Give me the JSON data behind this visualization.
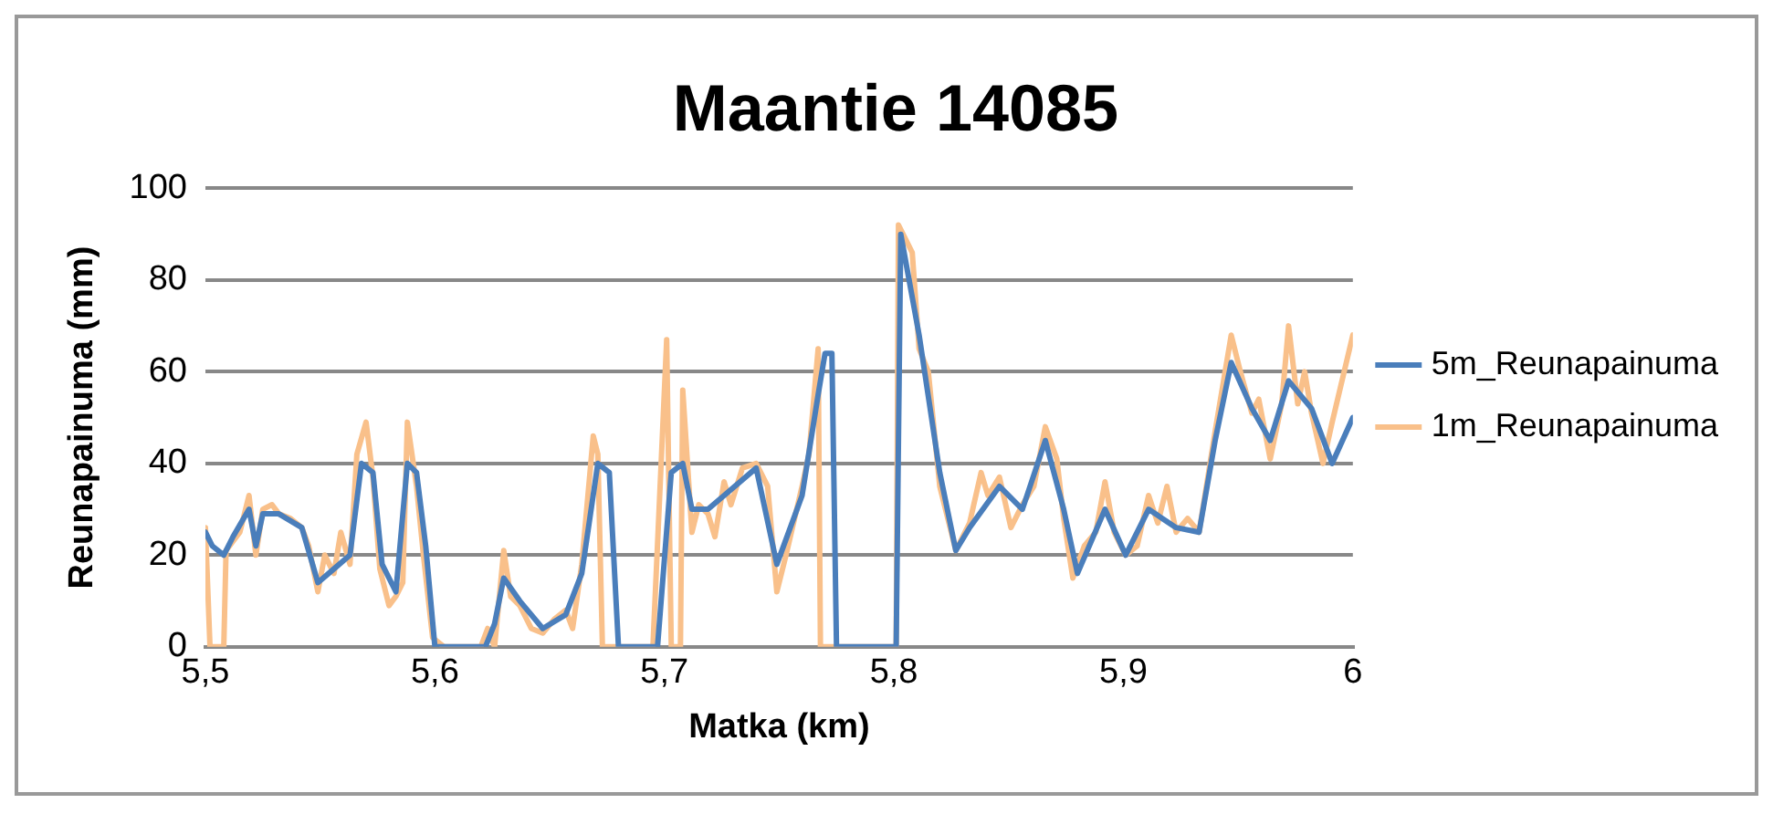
{
  "chart_data": {
    "type": "line",
    "title": "Maantie 14085",
    "xlabel": "Matka (km)",
    "ylabel": "Reunapainuma (mm)",
    "xlim": [
      5.5,
      6
    ],
    "xticks": [
      {
        "value": 5.5,
        "label": "5,5"
      },
      {
        "value": 5.6,
        "label": "5,6"
      },
      {
        "value": 5.7,
        "label": "5,7"
      },
      {
        "value": 5.8,
        "label": "5,8"
      },
      {
        "value": 5.9,
        "label": "5,9"
      },
      6
    ],
    "ylim": [
      0,
      100
    ],
    "yticks": [
      0,
      20,
      40,
      60,
      80,
      100
    ],
    "grid": "y",
    "legend": "right",
    "marker": "none",
    "line_style": "solid",
    "series": [
      {
        "name": "5m_Reunapainuma",
        "color": "#4a7ebb",
        "x": [
          5.5,
          5.503,
          5.508,
          5.512,
          5.519,
          5.522,
          5.525,
          5.532,
          5.542,
          5.549,
          5.556,
          5.563,
          5.568,
          5.573,
          5.577,
          5.583,
          5.588,
          5.592,
          5.596,
          5.6,
          5.622,
          5.626,
          5.63,
          5.637,
          5.647,
          5.657,
          5.664,
          5.671,
          5.676,
          5.68,
          5.697,
          5.703,
          5.708,
          5.712,
          5.719,
          5.726,
          5.74,
          5.749,
          5.76,
          5.767,
          5.77,
          5.773,
          5.775,
          5.801,
          5.803,
          5.811,
          5.82,
          5.827,
          5.833,
          5.846,
          5.856,
          5.866,
          5.874,
          5.88,
          5.892,
          5.901,
          5.911,
          5.923,
          5.933,
          5.94,
          5.947,
          5.956,
          5.964,
          5.972,
          5.982,
          5.991,
          6.0
        ],
        "values": [
          25,
          22,
          20,
          24,
          30,
          22,
          29,
          29,
          26,
          14,
          17,
          20,
          40,
          38,
          18,
          12,
          40,
          38,
          22,
          0,
          0,
          5,
          15,
          10,
          4,
          7,
          16,
          40,
          38,
          0,
          0,
          38,
          40,
          30,
          30,
          33,
          39,
          18,
          33,
          55,
          64,
          64,
          0,
          0,
          90,
          68,
          38,
          21,
          26,
          35,
          30,
          45,
          30,
          16,
          30,
          20,
          30,
          26,
          25,
          45,
          62,
          52,
          45,
          58,
          52,
          40,
          50
        ]
      },
      {
        "name": "1m_Reunapainuma",
        "color": "#f9c08a",
        "x": [
          5.5,
          5.502,
          5.508,
          5.509,
          5.512,
          5.515,
          5.519,
          5.522,
          5.525,
          5.529,
          5.532,
          5.537,
          5.542,
          5.545,
          5.549,
          5.552,
          5.556,
          5.559,
          5.563,
          5.566,
          5.57,
          5.573,
          5.576,
          5.58,
          5.583,
          5.586,
          5.588,
          5.592,
          5.595,
          5.599,
          5.604,
          5.62,
          5.623,
          5.626,
          5.63,
          5.633,
          5.637,
          5.642,
          5.647,
          5.652,
          5.657,
          5.66,
          5.664,
          5.669,
          5.671,
          5.673,
          5.695,
          5.701,
          5.703,
          5.707,
          5.708,
          5.712,
          5.715,
          5.719,
          5.722,
          5.726,
          5.729,
          5.734,
          5.74,
          5.745,
          5.749,
          5.753,
          5.76,
          5.763,
          5.767,
          5.768,
          5.801,
          5.802,
          5.808,
          5.811,
          5.815,
          5.82,
          5.827,
          5.833,
          5.838,
          5.841,
          5.846,
          5.851,
          5.856,
          5.861,
          5.866,
          5.871,
          5.874,
          5.878,
          5.883,
          5.888,
          5.892,
          5.896,
          5.901,
          5.906,
          5.911,
          5.915,
          5.919,
          5.923,
          5.928,
          5.933,
          5.94,
          5.947,
          5.951,
          5.956,
          5.959,
          5.964,
          5.969,
          5.972,
          5.976,
          5.979,
          5.982,
          5.987,
          5.991,
          6.0
        ],
        "values": [
          26,
          0,
          0,
          21,
          23,
          25,
          33,
          20,
          30,
          31,
          29,
          28,
          26,
          22,
          12,
          20,
          16,
          25,
          18,
          42,
          49,
          37,
          17,
          9,
          11,
          14,
          49,
          35,
          20,
          2,
          0,
          0,
          4,
          0,
          21,
          11,
          9,
          4,
          3,
          6,
          8,
          4,
          18,
          46,
          42,
          0,
          0,
          67,
          0,
          0,
          56,
          25,
          31,
          29,
          24,
          36,
          31,
          39,
          40,
          35,
          12,
          20,
          35,
          42,
          65,
          0,
          0,
          92,
          86,
          65,
          60,
          35,
          21,
          27,
          38,
          33,
          37,
          26,
          31,
          35,
          48,
          41,
          28,
          15,
          22,
          25,
          36,
          25,
          20,
          22,
          33,
          27,
          35,
          25,
          28,
          25,
          47,
          68,
          60,
          51,
          54,
          41,
          53,
          70,
          53,
          60,
          51,
          40,
          49,
          68
        ]
      }
    ]
  }
}
